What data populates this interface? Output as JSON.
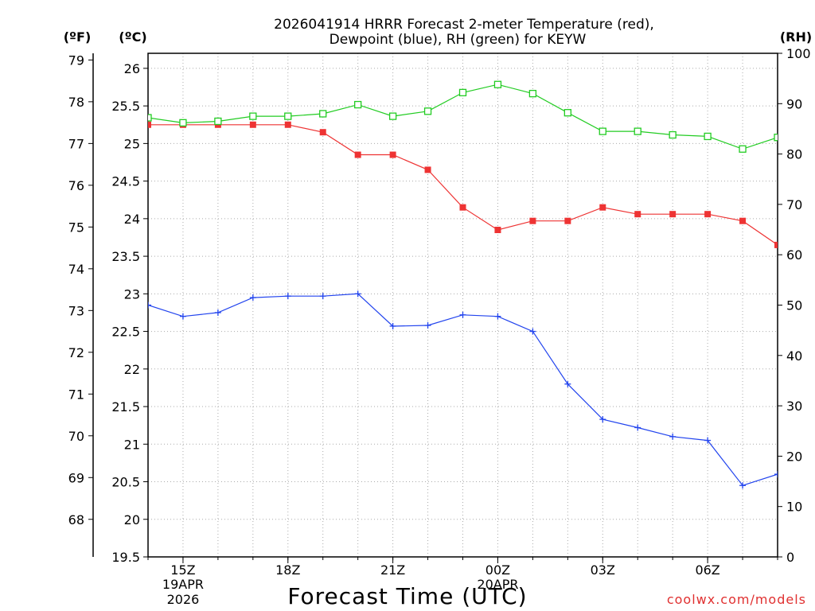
{
  "chart_data": {
    "type": "line",
    "title_line1": "2026041914 HRRR Forecast 2-meter Temperature (red),",
    "title_line2": "Dewpoint (blue), RH (green) for KEYW",
    "xlabel": "Forecast Time (UTC)",
    "units": {
      "fahrenheit": "(ºF)",
      "celsius": "(ºC)",
      "rh": "(RH)"
    },
    "watermark": "coolwx.com/models",
    "hours": [
      14,
      15,
      16,
      17,
      18,
      19,
      20,
      21,
      22,
      23,
      24,
      25,
      26,
      27,
      28,
      29,
      30,
      31,
      32
    ],
    "x_ticks": [
      {
        "hour": 15,
        "label": "15Z",
        "sub1": "19APR",
        "sub2": "2026"
      },
      {
        "hour": 18,
        "label": "18Z",
        "sub1": "",
        "sub2": ""
      },
      {
        "hour": 21,
        "label": "21Z",
        "sub1": "",
        "sub2": ""
      },
      {
        "hour": 24,
        "label": "00Z",
        "sub1": "20APR",
        "sub2": ""
      },
      {
        "hour": 27,
        "label": "03Z",
        "sub1": "",
        "sub2": ""
      },
      {
        "hour": 30,
        "label": "06Z",
        "sub1": "",
        "sub2": ""
      }
    ],
    "y_celsius": {
      "min": 19.5,
      "max": 26.2,
      "ticks": [
        "19.5",
        "20",
        "20.5",
        "21",
        "21.5",
        "22",
        "22.5",
        "23",
        "23.5",
        "24",
        "24.5",
        "25",
        "25.5",
        "26"
      ]
    },
    "y_fahrenheit": {
      "ticks": [
        "68",
        "69",
        "70",
        "71",
        "72",
        "73",
        "74",
        "75",
        "76",
        "77",
        "78",
        "79"
      ]
    },
    "y_rh": {
      "min": 0,
      "max": 100,
      "ticks": [
        "0",
        "10",
        "20",
        "30",
        "40",
        "50",
        "60",
        "70",
        "80",
        "90",
        "100"
      ]
    },
    "series": [
      {
        "name": "Temperature",
        "color": "#ee3333",
        "axis": "celsius",
        "marker": "filled-square",
        "values": [
          25.25,
          25.25,
          25.25,
          25.25,
          25.25,
          25.15,
          24.85,
          24.85,
          24.65,
          24.15,
          23.85,
          23.97,
          23.97,
          24.15,
          24.06,
          24.06,
          24.06,
          23.97,
          23.65
        ]
      },
      {
        "name": "Dewpoint",
        "color": "#2244ee",
        "axis": "celsius",
        "marker": "plus",
        "values": [
          22.85,
          22.7,
          22.75,
          22.95,
          22.97,
          22.97,
          23.0,
          22.57,
          22.58,
          22.72,
          22.7,
          22.5,
          21.8,
          21.33,
          21.22,
          21.1,
          21.05,
          20.45,
          20.6
        ]
      },
      {
        "name": "RH",
        "color": "#22cc22",
        "axis": "rh",
        "marker": "open-square",
        "values": [
          87.2,
          86.2,
          86.5,
          87.5,
          87.5,
          88.0,
          89.8,
          87.5,
          88.5,
          92.2,
          93.8,
          92.0,
          88.2,
          84.5,
          84.5,
          83.8,
          83.5,
          81.0,
          83.3
        ]
      }
    ]
  }
}
